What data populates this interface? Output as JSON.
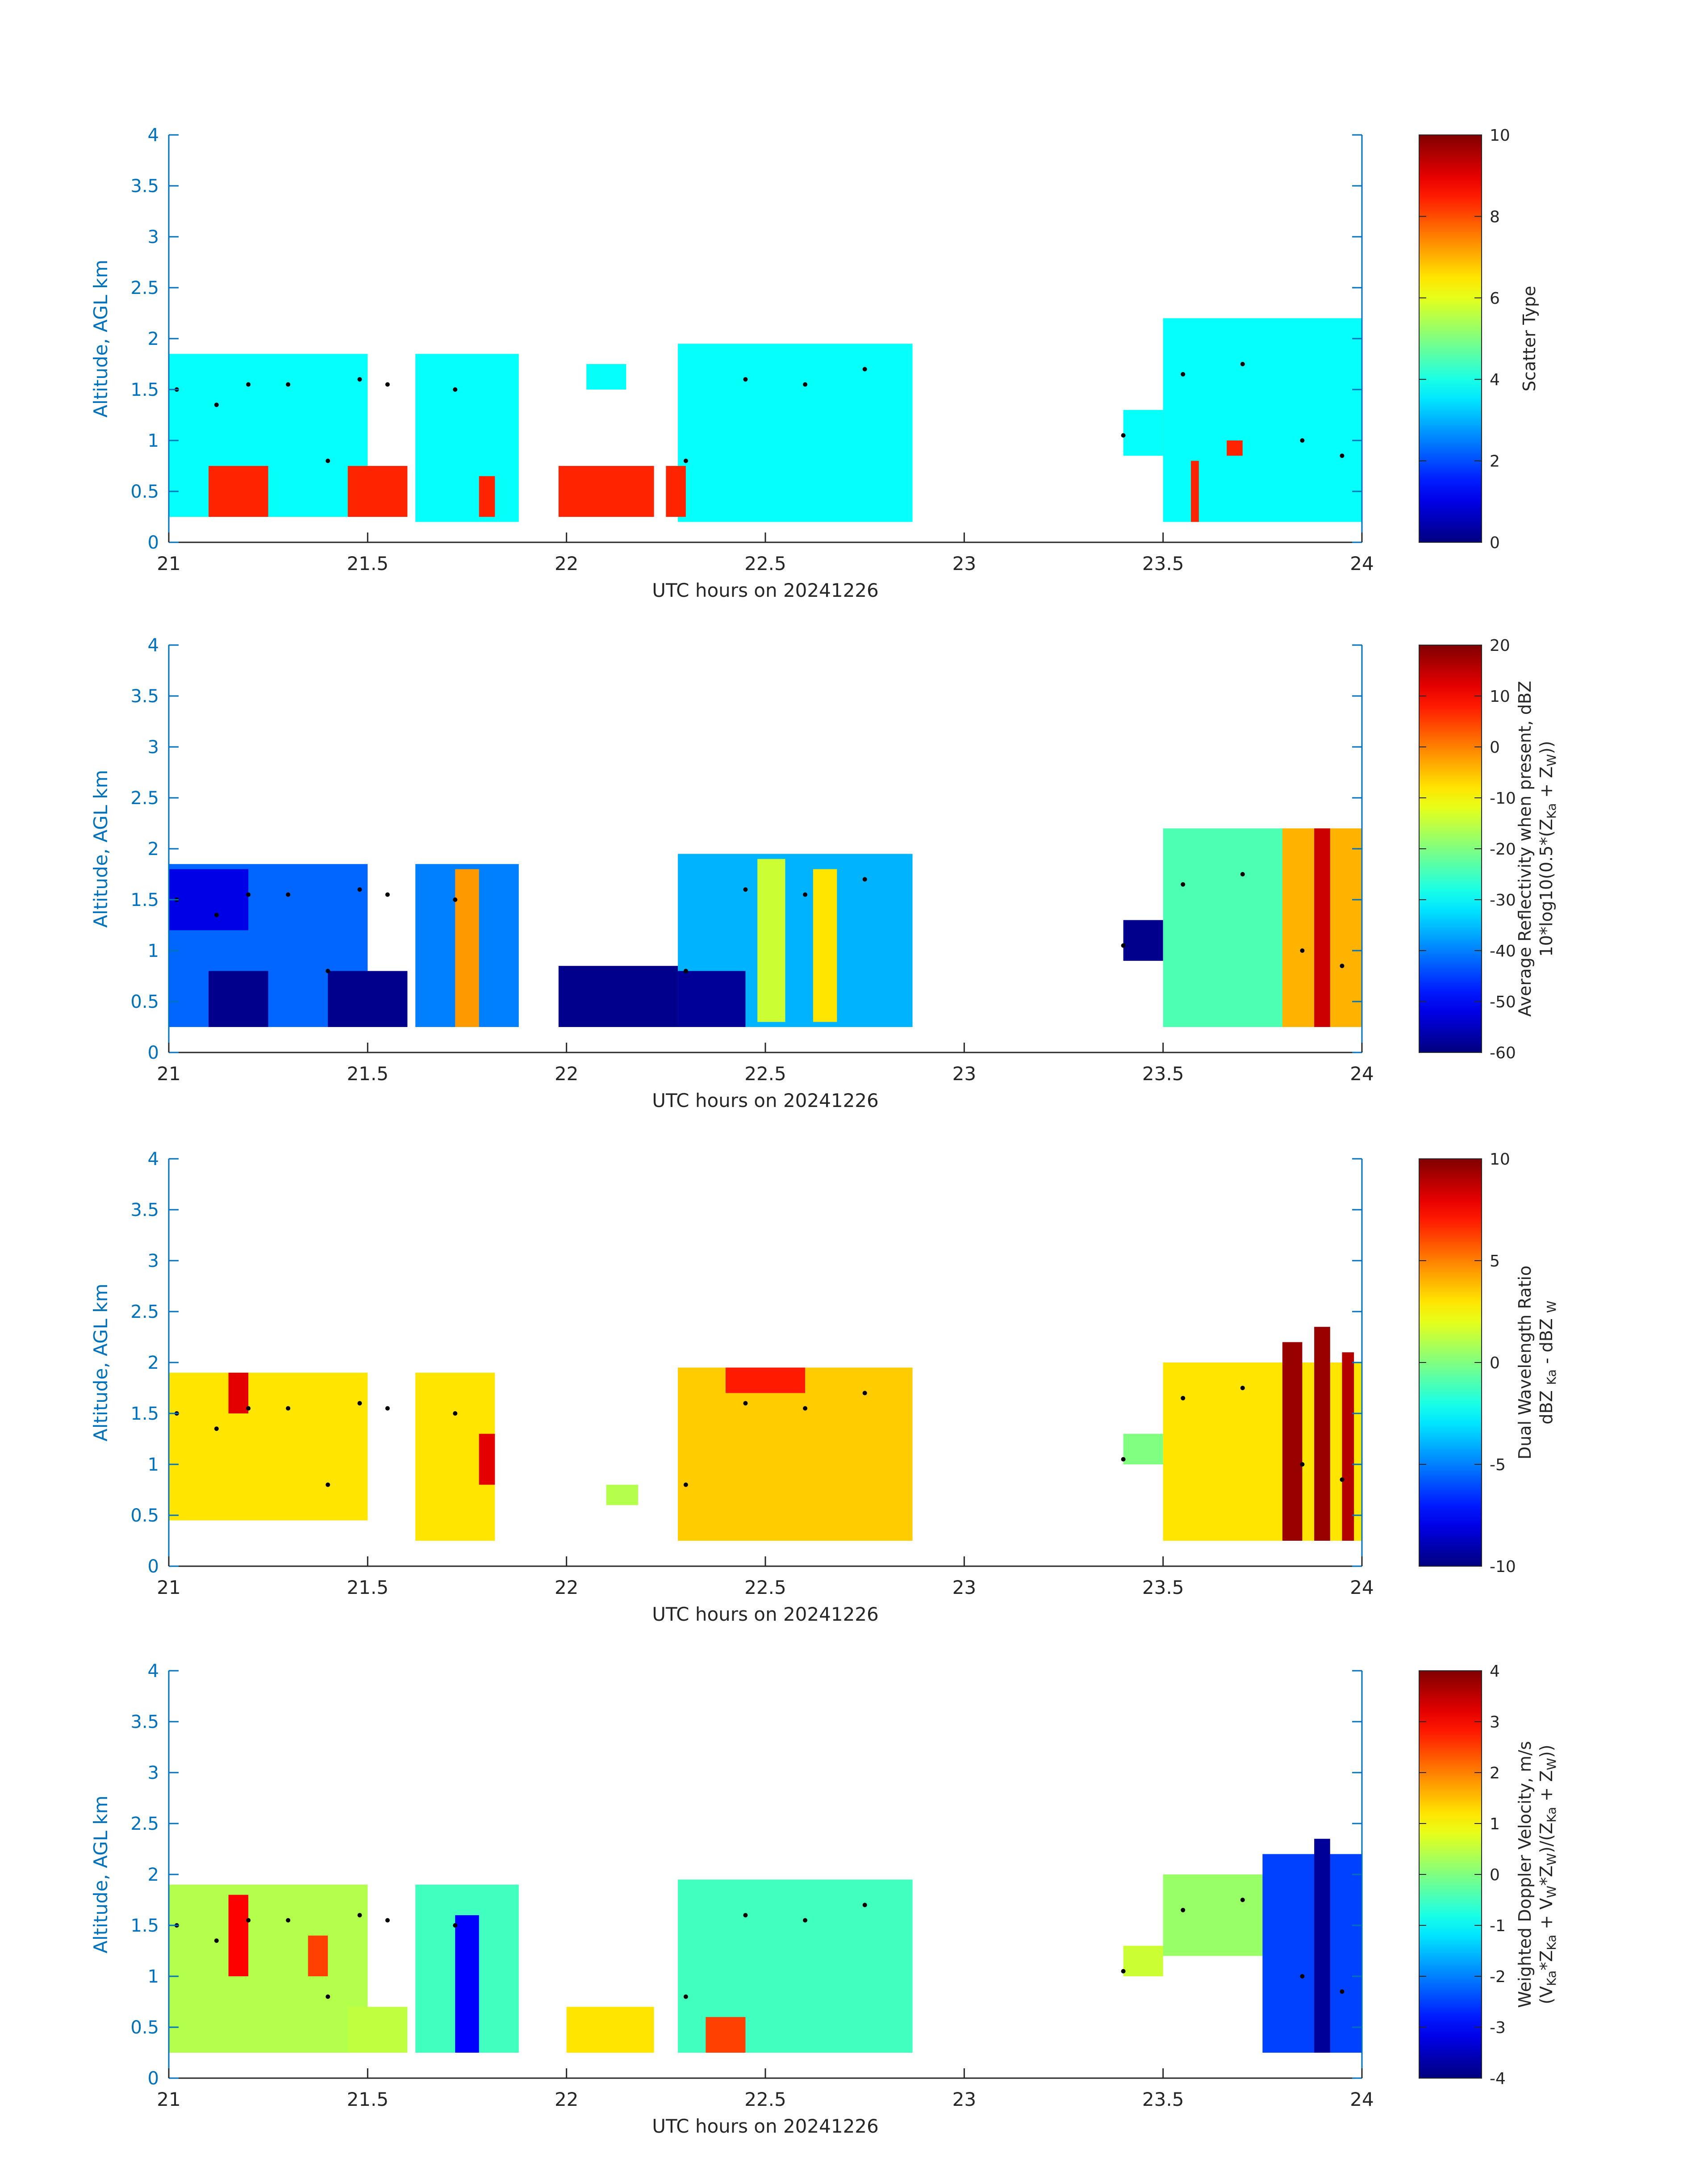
{
  "palette": {
    "axis_color": "#0072BD",
    "colormap": "jet",
    "marker_color": "#000000"
  },
  "chart_data": [
    {
      "type": "heatmap",
      "xlabel": "UTC hours on 20241226",
      "ylabel": "Altitude, AGL km",
      "xlim": [
        21,
        24
      ],
      "ylim": [
        0,
        4
      ],
      "xticks": [
        "21",
        "21.5",
        "22",
        "22.5",
        "23",
        "23.5",
        "24"
      ],
      "yticks": [
        "0",
        "0.5",
        "1",
        "1.5",
        "2",
        "2.5",
        "3",
        "3.5",
        "4"
      ],
      "colorbar": {
        "clim": [
          0,
          10
        ],
        "ticks": [
          "0",
          "2",
          "4",
          "6",
          "8",
          "10"
        ],
        "label": "Scatter Type"
      },
      "regions": [
        {
          "x0": 21.0,
          "x1": 21.5,
          "bottom": 0.25,
          "top": 1.85,
          "value": 3.8
        },
        {
          "x0": 21.62,
          "x1": 21.88,
          "bottom": 0.2,
          "top": 1.85,
          "value": 3.8
        },
        {
          "x0": 22.05,
          "x1": 22.15,
          "bottom": 1.5,
          "top": 1.75,
          "value": 3.8
        },
        {
          "x0": 22.28,
          "x1": 22.87,
          "bottom": 0.2,
          "top": 1.95,
          "value": 3.8
        },
        {
          "x0": 23.4,
          "x1": 23.5,
          "bottom": 0.85,
          "top": 1.3,
          "value": 3.8
        },
        {
          "x0": 23.5,
          "x1": 24.0,
          "bottom": 0.2,
          "top": 2.2,
          "value": 3.8
        },
        {
          "x0": 21.1,
          "x1": 21.25,
          "bottom": 0.25,
          "top": 0.75,
          "value": 8.4
        },
        {
          "x0": 21.45,
          "x1": 21.6,
          "bottom": 0.25,
          "top": 0.75,
          "value": 8.4
        },
        {
          "x0": 21.78,
          "x1": 21.82,
          "bottom": 0.25,
          "top": 0.65,
          "value": 8.4
        },
        {
          "x0": 21.98,
          "x1": 22.22,
          "bottom": 0.25,
          "top": 0.75,
          "value": 8.4
        },
        {
          "x0": 22.25,
          "x1": 22.3,
          "bottom": 0.25,
          "top": 0.75,
          "value": 8.4
        },
        {
          "x0": 23.57,
          "x1": 23.59,
          "bottom": 0.2,
          "top": 0.8,
          "value": 8.4
        },
        {
          "x0": 23.66,
          "x1": 23.7,
          "bottom": 0.85,
          "top": 1.0,
          "value": 8.4
        }
      ],
      "cloud_top_markers": {
        "x": [
          21.02,
          21.12,
          21.2,
          21.3,
          21.4,
          21.48,
          21.55,
          21.72,
          22.3,
          22.45,
          22.6,
          22.75,
          23.4,
          23.55,
          23.7,
          23.85,
          23.95
        ],
        "y": [
          1.5,
          1.35,
          1.55,
          1.55,
          0.8,
          1.6,
          1.55,
          1.5,
          0.8,
          1.6,
          1.55,
          1.7,
          1.05,
          1.65,
          1.75,
          1.0,
          0.85
        ]
      }
    },
    {
      "type": "heatmap",
      "xlabel": "UTC hours on 20241226",
      "ylabel": "Altitude, AGL km",
      "xlim": [
        21,
        24
      ],
      "ylim": [
        0,
        4
      ],
      "xticks": [
        "21",
        "21.5",
        "22",
        "22.5",
        "23",
        "23.5",
        "24"
      ],
      "yticks": [
        "0",
        "0.5",
        "1",
        "1.5",
        "2",
        "2.5",
        "3",
        "3.5",
        "4"
      ],
      "colorbar": {
        "clim": [
          -60,
          20
        ],
        "ticks": [
          "-60",
          "-50",
          "-40",
          "-30",
          "-20",
          "-10",
          "0",
          "10",
          "20"
        ],
        "label_line1": "Average Reflectivity when present, dBZ",
        "label_line2_parts": [
          "10*log10(0.5*(Z",
          "Ka",
          " + Z",
          "W",
          "))"
        ]
      },
      "regions": [
        {
          "x0": 21.0,
          "x1": 21.5,
          "bottom": 0.25,
          "top": 1.85,
          "value": -42
        },
        {
          "x0": 21.0,
          "x1": 21.2,
          "bottom": 1.2,
          "top": 1.8,
          "value": -52
        },
        {
          "x0": 21.1,
          "x1": 21.25,
          "bottom": 0.25,
          "top": 0.8,
          "value": -59
        },
        {
          "x0": 21.4,
          "x1": 21.6,
          "bottom": 0.25,
          "top": 0.8,
          "value": -59
        },
        {
          "x0": 21.62,
          "x1": 21.88,
          "bottom": 0.25,
          "top": 1.85,
          "value": -40
        },
        {
          "x0": 21.72,
          "x1": 21.78,
          "bottom": 0.25,
          "top": 1.8,
          "value": -2
        },
        {
          "x0": 21.98,
          "x1": 22.28,
          "bottom": 0.25,
          "top": 0.85,
          "value": -59
        },
        {
          "x0": 22.28,
          "x1": 22.87,
          "bottom": 0.25,
          "top": 1.95,
          "value": -36
        },
        {
          "x0": 22.28,
          "x1": 22.45,
          "bottom": 0.25,
          "top": 0.8,
          "value": -58
        },
        {
          "x0": 22.48,
          "x1": 22.55,
          "bottom": 0.3,
          "top": 1.9,
          "value": -14
        },
        {
          "x0": 22.62,
          "x1": 22.68,
          "bottom": 0.3,
          "top": 1.8,
          "value": -8
        },
        {
          "x0": 23.4,
          "x1": 23.5,
          "bottom": 0.9,
          "top": 1.3,
          "value": -59
        },
        {
          "x0": 23.5,
          "x1": 24.0,
          "bottom": 0.25,
          "top": 2.2,
          "value": -24
        },
        {
          "x0": 23.8,
          "x1": 24.0,
          "bottom": 0.25,
          "top": 2.2,
          "value": -4
        },
        {
          "x0": 23.88,
          "x1": 23.92,
          "bottom": 0.25,
          "top": 2.2,
          "value": 14
        }
      ],
      "cloud_top_markers": {
        "x": [
          21.02,
          21.12,
          21.2,
          21.3,
          21.4,
          21.48,
          21.55,
          21.72,
          22.3,
          22.45,
          22.6,
          22.75,
          23.4,
          23.55,
          23.7,
          23.85,
          23.95
        ],
        "y": [
          1.5,
          1.35,
          1.55,
          1.55,
          0.8,
          1.6,
          1.55,
          1.5,
          0.8,
          1.6,
          1.55,
          1.7,
          1.05,
          1.65,
          1.75,
          1.0,
          0.85
        ]
      }
    },
    {
      "type": "heatmap",
      "xlabel": "UTC hours on 20241226",
      "ylabel": "Altitude, AGL km",
      "xlim": [
        21,
        24
      ],
      "ylim": [
        0,
        4
      ],
      "xticks": [
        "21",
        "21.5",
        "22",
        "22.5",
        "23",
        "23.5",
        "24"
      ],
      "yticks": [
        "0",
        "0.5",
        "1",
        "1.5",
        "2",
        "2.5",
        "3",
        "3.5",
        "4"
      ],
      "colorbar": {
        "clim": [
          -10,
          10
        ],
        "ticks": [
          "-10",
          "-5",
          "0",
          "5",
          "10"
        ],
        "label_line1": "Dual Wavelength Ratio",
        "label_line2_parts": [
          "dBZ ",
          "Ka",
          " - dBZ ",
          "W",
          ""
        ]
      },
      "regions": [
        {
          "x0": 21.0,
          "x1": 21.5,
          "bottom": 0.45,
          "top": 1.9,
          "value": 3
        },
        {
          "x0": 21.15,
          "x1": 21.2,
          "bottom": 1.5,
          "top": 1.9,
          "value": 8
        },
        {
          "x0": 21.62,
          "x1": 21.82,
          "bottom": 0.25,
          "top": 1.9,
          "value": 3
        },
        {
          "x0": 21.78,
          "x1": 21.82,
          "bottom": 0.8,
          "top": 1.3,
          "value": 8
        },
        {
          "x0": 22.1,
          "x1": 22.18,
          "bottom": 0.6,
          "top": 0.8,
          "value": 1
        },
        {
          "x0": 22.28,
          "x1": 22.87,
          "bottom": 0.25,
          "top": 1.95,
          "value": 3.5
        },
        {
          "x0": 22.4,
          "x1": 22.6,
          "bottom": 1.7,
          "top": 1.95,
          "value": 7
        },
        {
          "x0": 23.4,
          "x1": 23.5,
          "bottom": 1.0,
          "top": 1.3,
          "value": 0
        },
        {
          "x0": 23.5,
          "x1": 24.0,
          "bottom": 0.25,
          "top": 2.0,
          "value": 3
        },
        {
          "x0": 23.8,
          "x1": 23.85,
          "bottom": 0.25,
          "top": 2.2,
          "value": 9.5
        },
        {
          "x0": 23.88,
          "x1": 23.92,
          "bottom": 0.25,
          "top": 2.35,
          "value": 9.5
        },
        {
          "x0": 23.95,
          "x1": 23.98,
          "bottom": 0.25,
          "top": 2.1,
          "value": 9
        }
      ],
      "cloud_top_markers": {
        "x": [
          21.02,
          21.12,
          21.2,
          21.3,
          21.4,
          21.48,
          21.55,
          21.72,
          22.3,
          22.45,
          22.6,
          22.75,
          23.4,
          23.55,
          23.7,
          23.85,
          23.95
        ],
        "y": [
          1.5,
          1.35,
          1.55,
          1.55,
          0.8,
          1.6,
          1.55,
          1.5,
          0.8,
          1.6,
          1.55,
          1.7,
          1.05,
          1.65,
          1.75,
          1.0,
          0.85
        ]
      }
    },
    {
      "type": "heatmap",
      "xlabel": "UTC hours on 20241226",
      "ylabel": "Altitude, AGL km",
      "xlim": [
        21,
        24
      ],
      "ylim": [
        0,
        4
      ],
      "xticks": [
        "21",
        "21.5",
        "22",
        "22.5",
        "23",
        "23.5",
        "24"
      ],
      "yticks": [
        "0",
        "0.5",
        "1",
        "1.5",
        "2",
        "2.5",
        "3",
        "3.5",
        "4"
      ],
      "colorbar": {
        "clim": [
          -4,
          4
        ],
        "ticks": [
          "-4",
          "-3",
          "-2",
          "-1",
          "0",
          "1",
          "2",
          "3",
          "4"
        ],
        "label_line1": "Weighted Doppler Velocity, m/s",
        "label_line2_parts": [
          "(V",
          "Ka",
          "*Z",
          "Ka",
          " + V",
          "W",
          "*Z",
          "W",
          ")/(Z",
          "Ka",
          " + Z",
          "W",
          "))"
        ]
      },
      "regions": [
        {
          "x0": 21.0,
          "x1": 21.5,
          "bottom": 0.25,
          "top": 1.9,
          "value": 0.4
        },
        {
          "x0": 21.15,
          "x1": 21.2,
          "bottom": 1.0,
          "top": 1.8,
          "value": 3
        },
        {
          "x0": 21.35,
          "x1": 21.4,
          "bottom": 1.0,
          "top": 1.4,
          "value": 2.5
        },
        {
          "x0": 21.45,
          "x1": 21.6,
          "bottom": 0.25,
          "top": 0.7,
          "value": 0.5
        },
        {
          "x0": 21.62,
          "x1": 21.88,
          "bottom": 0.25,
          "top": 1.9,
          "value": -0.5
        },
        {
          "x0": 21.72,
          "x1": 21.78,
          "bottom": 0.25,
          "top": 1.6,
          "value": -3
        },
        {
          "x0": 22.0,
          "x1": 22.22,
          "bottom": 0.25,
          "top": 0.7,
          "value": 1.2
        },
        {
          "x0": 22.28,
          "x1": 22.87,
          "bottom": 0.25,
          "top": 1.95,
          "value": -0.5
        },
        {
          "x0": 22.35,
          "x1": 22.45,
          "bottom": 0.25,
          "top": 0.6,
          "value": 2.5
        },
        {
          "x0": 23.4,
          "x1": 23.5,
          "bottom": 1.0,
          "top": 1.3,
          "value": 0.6
        },
        {
          "x0": 23.5,
          "x1": 23.75,
          "bottom": 1.2,
          "top": 2.0,
          "value": 0.2
        },
        {
          "x0": 23.75,
          "x1": 24.0,
          "bottom": 0.25,
          "top": 2.2,
          "value": -2.5
        },
        {
          "x0": 23.88,
          "x1": 23.92,
          "bottom": 0.25,
          "top": 2.35,
          "value": -3.8
        }
      ],
      "cloud_top_markers": {
        "x": [
          21.02,
          21.12,
          21.2,
          21.3,
          21.4,
          21.48,
          21.55,
          21.72,
          22.3,
          22.45,
          22.6,
          22.75,
          23.4,
          23.55,
          23.7,
          23.85,
          23.95
        ],
        "y": [
          1.5,
          1.35,
          1.55,
          1.55,
          0.8,
          1.6,
          1.55,
          1.5,
          0.8,
          1.6,
          1.55,
          1.7,
          1.05,
          1.65,
          1.75,
          1.0,
          0.85
        ]
      }
    }
  ]
}
